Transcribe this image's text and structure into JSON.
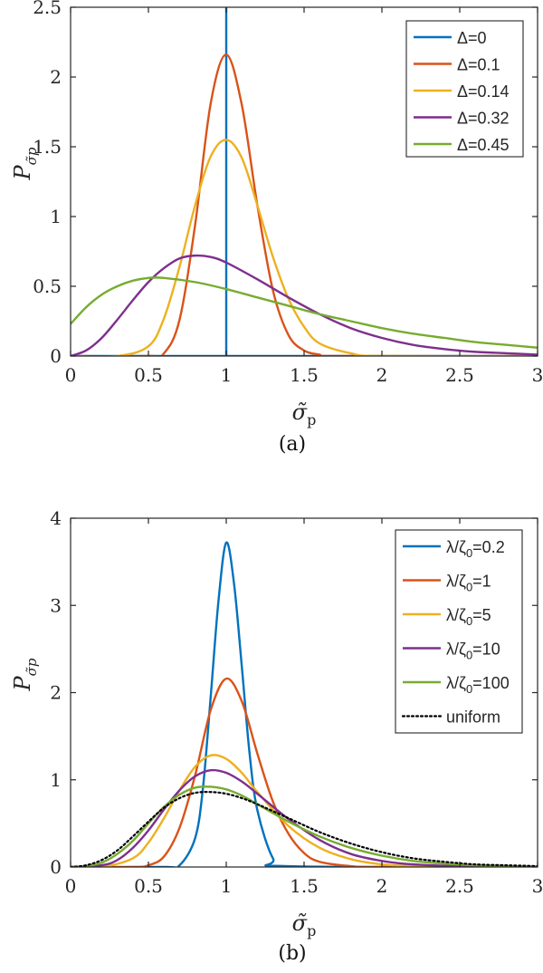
{
  "colors": {
    "blue": "#0072BD",
    "orange": "#D95319",
    "yellow": "#EDB120",
    "purple": "#7E2F8E",
    "green": "#77AC30",
    "black": "#000000"
  },
  "chart_data": [
    {
      "type": "line",
      "panel_label": "(a)",
      "xlabel": "σ̃p",
      "ylabel": "Pσ̃p",
      "xlim": [
        0,
        3
      ],
      "ylim": [
        0,
        2.5
      ],
      "xticks": [
        "0",
        "0.5",
        "1",
        "1.5",
        "2",
        "2.5",
        "3"
      ],
      "yticks": [
        "0",
        "0.5",
        "1",
        "1.5",
        "2",
        "2.5"
      ],
      "xtick_values": [
        0,
        0.5,
        1,
        1.5,
        2,
        2.5,
        3
      ],
      "ytick_values": [
        0,
        0.5,
        1,
        1.5,
        2,
        2.5
      ],
      "legend_position": "top-right",
      "series": [
        {
          "name": "Δ=0",
          "color": "blue",
          "dash": "solid",
          "x": [
            0,
            1,
            1,
            1,
            3
          ],
          "y": [
            0,
            0,
            2.5,
            0,
            0
          ]
        },
        {
          "name": "Δ=0.1",
          "color": "orange",
          "dash": "solid",
          "x": [
            0,
            0.5,
            0.6,
            0.7,
            0.8,
            0.9,
            1.0,
            1.1,
            1.2,
            1.3,
            1.4,
            1.5,
            1.6,
            1.7,
            3
          ],
          "y": [
            0,
            0.0,
            0.02,
            0.26,
            0.94,
            1.81,
            2.16,
            1.8,
            1.08,
            0.47,
            0.15,
            0.04,
            0.01,
            0.0,
            0
          ]
        },
        {
          "name": "Δ=0.14",
          "color": "yellow",
          "dash": "solid",
          "x": [
            0,
            0.3,
            0.5,
            0.6,
            0.7,
            0.8,
            0.9,
            1.0,
            1.1,
            1.2,
            1.3,
            1.4,
            1.5,
            1.6,
            1.8,
            2.0,
            3
          ],
          "y": [
            0,
            0.0,
            0.07,
            0.27,
            0.64,
            1.08,
            1.43,
            1.55,
            1.42,
            1.08,
            0.71,
            0.41,
            0.21,
            0.09,
            0.02,
            0.0,
            0
          ]
        },
        {
          "name": "Δ=0.32",
          "color": "purple",
          "dash": "solid",
          "x": [
            0,
            0.1,
            0.2,
            0.3,
            0.4,
            0.5,
            0.6,
            0.7,
            0.8,
            0.9,
            1.0,
            1.2,
            1.4,
            1.6,
            1.8,
            2.0,
            2.2,
            2.4,
            2.6,
            2.8,
            3.0
          ],
          "y": [
            0,
            0.04,
            0.13,
            0.26,
            0.4,
            0.53,
            0.63,
            0.7,
            0.72,
            0.71,
            0.67,
            0.55,
            0.42,
            0.3,
            0.2,
            0.13,
            0.08,
            0.05,
            0.03,
            0.02,
            0.01
          ]
        },
        {
          "name": "Δ=0.45",
          "color": "green",
          "dash": "solid",
          "x": [
            0,
            0.1,
            0.2,
            0.3,
            0.4,
            0.5,
            0.6,
            0.8,
            1.0,
            1.2,
            1.4,
            1.6,
            1.8,
            2.0,
            2.2,
            2.4,
            2.6,
            2.8,
            3.0
          ],
          "y": [
            0.23,
            0.35,
            0.44,
            0.5,
            0.54,
            0.56,
            0.56,
            0.53,
            0.48,
            0.42,
            0.36,
            0.3,
            0.25,
            0.2,
            0.16,
            0.13,
            0.1,
            0.08,
            0.06
          ]
        }
      ]
    },
    {
      "type": "line",
      "panel_label": "(b)",
      "xlabel": "σ̃p",
      "ylabel": "Pσ̃p",
      "xlim": [
        0,
        3
      ],
      "ylim": [
        0,
        4
      ],
      "xticks": [
        "0",
        "0.5",
        "1",
        "1.5",
        "2",
        "2.5",
        "3"
      ],
      "yticks": [
        "0",
        "1",
        "2",
        "3",
        "4"
      ],
      "xtick_values": [
        0,
        0.5,
        1,
        1.5,
        2,
        2.5,
        3
      ],
      "ytick_values": [
        0,
        1,
        2,
        3,
        4
      ],
      "legend_position": "top-right",
      "series": [
        {
          "name": "λ/ζ0=0.2",
          "color": "blue",
          "dash": "solid",
          "x": [
            0,
            0.6,
            0.7,
            0.8,
            0.85,
            0.9,
            0.95,
            1.0,
            1.05,
            1.1,
            1.15,
            1.2,
            1.3,
            1.4,
            3
          ],
          "y": [
            0,
            0.0,
            0.02,
            0.33,
            0.9,
            1.95,
            3.05,
            3.72,
            3.25,
            2.3,
            1.3,
            0.65,
            0.1,
            0.01,
            0
          ]
        },
        {
          "name": "λ/ζ0=1",
          "color": "orange",
          "dash": "solid",
          "x": [
            0,
            0.4,
            0.5,
            0.6,
            0.7,
            0.8,
            0.9,
            1.0,
            1.1,
            1.2,
            1.3,
            1.4,
            1.5,
            1.6,
            1.8,
            2.0,
            3
          ],
          "y": [
            0,
            0.0,
            0.02,
            0.12,
            0.45,
            1.05,
            1.8,
            2.16,
            1.9,
            1.3,
            0.75,
            0.38,
            0.16,
            0.06,
            0.01,
            0.0,
            0
          ]
        },
        {
          "name": "λ/ζ0=5",
          "color": "yellow",
          "dash": "solid",
          "x": [
            0,
            0.2,
            0.4,
            0.5,
            0.6,
            0.7,
            0.8,
            0.9,
            1.0,
            1.1,
            1.2,
            1.4,
            1.6,
            1.8,
            2.0,
            2.2,
            2.5,
            3
          ],
          "y": [
            0,
            0.0,
            0.1,
            0.28,
            0.56,
            0.88,
            1.15,
            1.28,
            1.24,
            1.08,
            0.86,
            0.47,
            0.22,
            0.09,
            0.03,
            0.01,
            0.0,
            0
          ]
        },
        {
          "name": "λ/ζ0=10",
          "color": "purple",
          "dash": "solid",
          "x": [
            0,
            0.2,
            0.3,
            0.4,
            0.5,
            0.6,
            0.7,
            0.8,
            0.9,
            1.0,
            1.1,
            1.2,
            1.4,
            1.6,
            1.8,
            2.0,
            2.2,
            2.5,
            3
          ],
          "y": [
            0,
            0.02,
            0.08,
            0.22,
            0.42,
            0.66,
            0.88,
            1.04,
            1.11,
            1.08,
            0.98,
            0.84,
            0.55,
            0.31,
            0.15,
            0.07,
            0.03,
            0.01,
            0
          ]
        },
        {
          "name": "λ/ζ0=100",
          "color": "green",
          "dash": "solid",
          "x": [
            0,
            0.1,
            0.2,
            0.3,
            0.4,
            0.5,
            0.6,
            0.7,
            0.8,
            0.9,
            1.0,
            1.1,
            1.2,
            1.4,
            1.6,
            1.8,
            2.0,
            2.2,
            2.4,
            2.6,
            2.8,
            3.0
          ],
          "y": [
            0,
            0.01,
            0.05,
            0.15,
            0.3,
            0.5,
            0.69,
            0.83,
            0.91,
            0.92,
            0.89,
            0.82,
            0.72,
            0.52,
            0.35,
            0.22,
            0.13,
            0.07,
            0.04,
            0.02,
            0.01,
            0.0
          ]
        },
        {
          "name": "uniform",
          "color": "black",
          "dash": "dotted",
          "x": [
            0,
            0.1,
            0.2,
            0.3,
            0.4,
            0.5,
            0.6,
            0.7,
            0.8,
            0.9,
            1.0,
            1.1,
            1.2,
            1.4,
            1.6,
            1.8,
            2.0,
            2.2,
            2.4,
            2.6,
            2.8,
            3.0
          ],
          "y": [
            0,
            0.02,
            0.08,
            0.19,
            0.35,
            0.52,
            0.68,
            0.79,
            0.85,
            0.86,
            0.84,
            0.79,
            0.72,
            0.56,
            0.4,
            0.27,
            0.17,
            0.1,
            0.06,
            0.03,
            0.02,
            0.01
          ]
        }
      ]
    }
  ]
}
